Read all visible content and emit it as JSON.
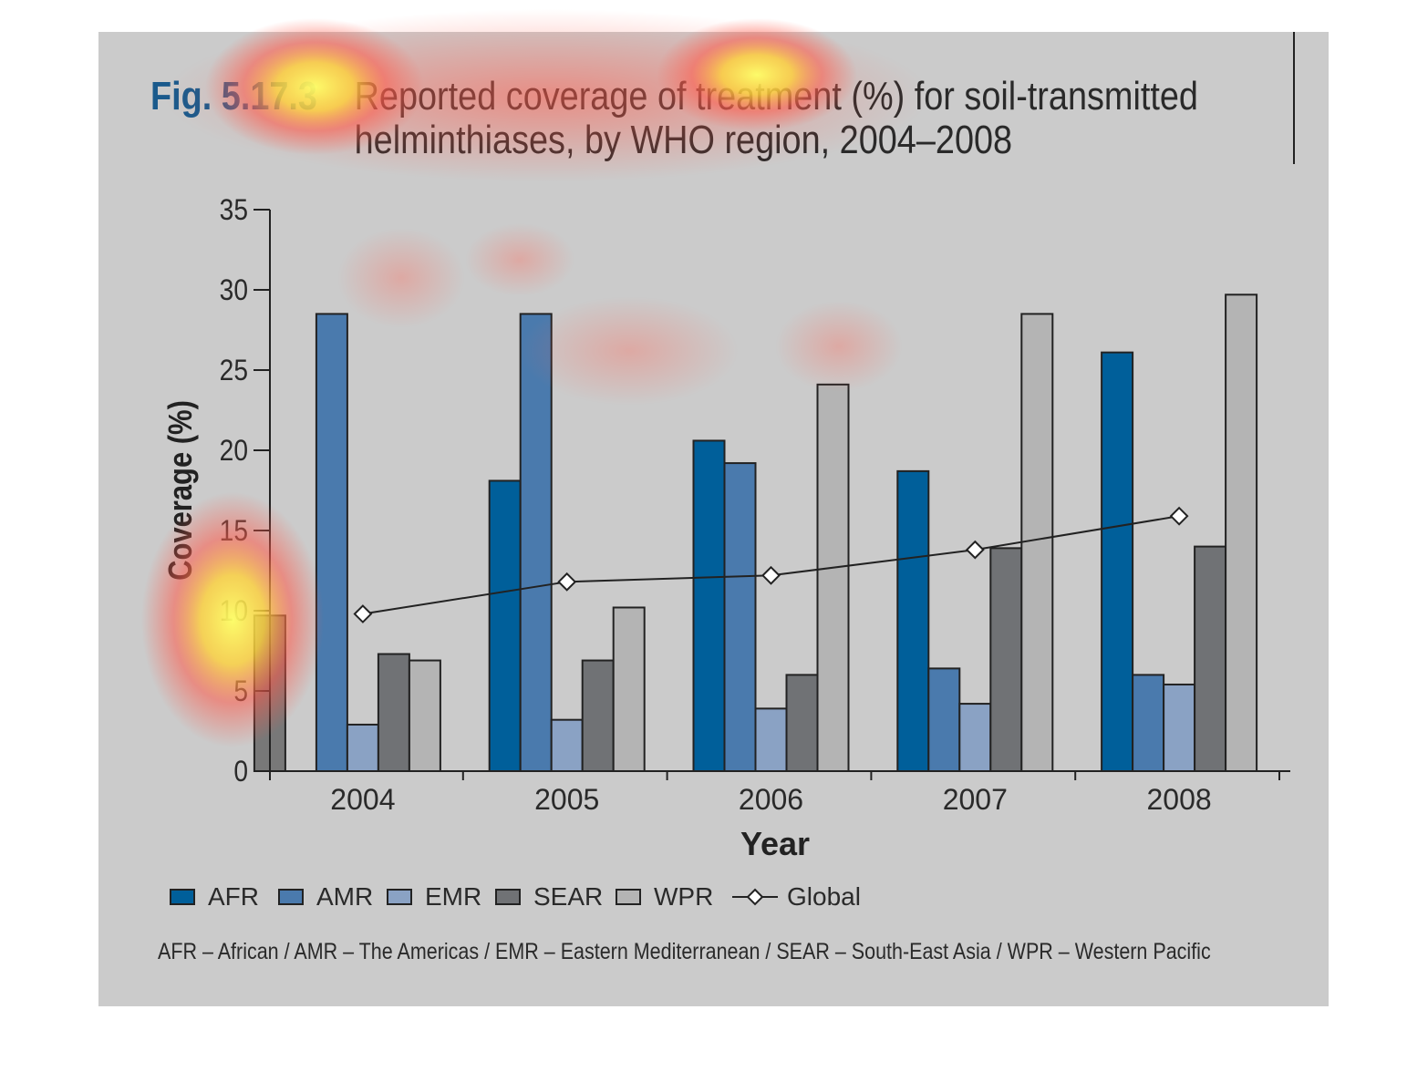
{
  "figure": {
    "number": "Fig. 5.17.3",
    "title": "Reported coverage of treatment (%) for soil-transmitted helminthiases, by WHO region, 2004–2008"
  },
  "footnote": "AFR – African / AMR – The Americas / EMR – Eastern Mediterranean / SEAR – South-East Asia / WPR – Western Pacific",
  "chart_data": {
    "type": "bar",
    "title": "Reported coverage of treatment (%) for soil-transmitted helminthiases, by WHO region, 2004–2008",
    "xlabel": "Year",
    "ylabel": "Coverage (%)",
    "ylim": [
      0,
      35
    ],
    "yticks": [
      0,
      5,
      10,
      15,
      20,
      25,
      30,
      35
    ],
    "categories": [
      "2004",
      "2005",
      "2006",
      "2007",
      "2008"
    ],
    "series": [
      {
        "name": "AFR",
        "color": "#005f9a",
        "values": [
          null,
          18.1,
          20.6,
          18.7,
          26.1
        ]
      },
      {
        "name": "AMR",
        "color": "#4a7aad",
        "values": [
          28.5,
          28.5,
          19.2,
          6.4,
          6.0
        ]
      },
      {
        "name": "EMR",
        "color": "#8aa2c4",
        "values": [
          2.9,
          3.2,
          3.9,
          4.2,
          5.4
        ]
      },
      {
        "name": "SEAR",
        "color": "#707275",
        "values": [
          7.3,
          6.9,
          6.0,
          13.9,
          14.0
        ]
      },
      {
        "name": "WPR",
        "color": "#b4b4b4",
        "values": [
          6.9,
          10.2,
          24.1,
          28.5,
          29.7
        ]
      }
    ],
    "line_series": {
      "name": "Global",
      "values": [
        9.8,
        11.8,
        12.2,
        13.8,
        15.9
      ]
    },
    "extra_bars": [
      {
        "category": "2004",
        "value": 9.7,
        "color": "#787878"
      }
    ],
    "grid": false,
    "legend_position": "bottom"
  },
  "heatmap_overlay": true
}
